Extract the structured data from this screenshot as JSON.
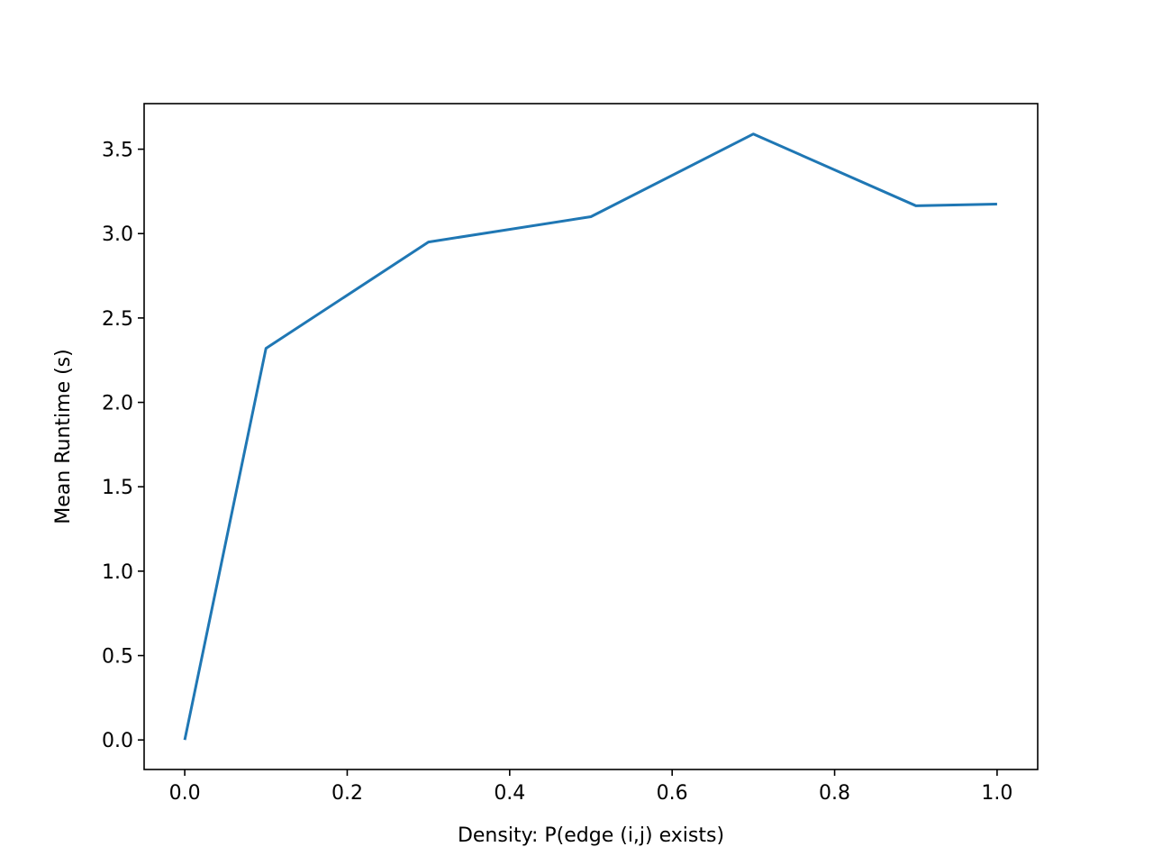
{
  "chart_data": {
    "type": "line",
    "title": "",
    "xlabel": "Density: P(edge (i,j) exists)",
    "ylabel": "Mean Runtime (s)",
    "xlim": [
      -0.05,
      1.05
    ],
    "ylim": [
      -0.175,
      3.77
    ],
    "grid": false,
    "x_ticks": [
      0.0,
      0.2,
      0.4,
      0.6,
      0.8,
      1.0
    ],
    "x_tick_labels": [
      "0.0",
      "0.2",
      "0.4",
      "0.6",
      "0.8",
      "1.0"
    ],
    "y_ticks": [
      0.0,
      0.5,
      1.0,
      1.5,
      2.0,
      2.5,
      3.0,
      3.5
    ],
    "y_tick_labels": [
      "0.0",
      "0.5",
      "1.0",
      "1.5",
      "2.0",
      "2.5",
      "3.0",
      "3.5"
    ],
    "series": [
      {
        "x": [
          0.0,
          0.1,
          0.3,
          0.5,
          0.7,
          0.9,
          1.0
        ],
        "y": [
          0.0,
          2.32,
          2.95,
          3.1,
          3.59,
          3.165,
          3.175
        ],
        "color": "#1f77b4"
      }
    ]
  }
}
